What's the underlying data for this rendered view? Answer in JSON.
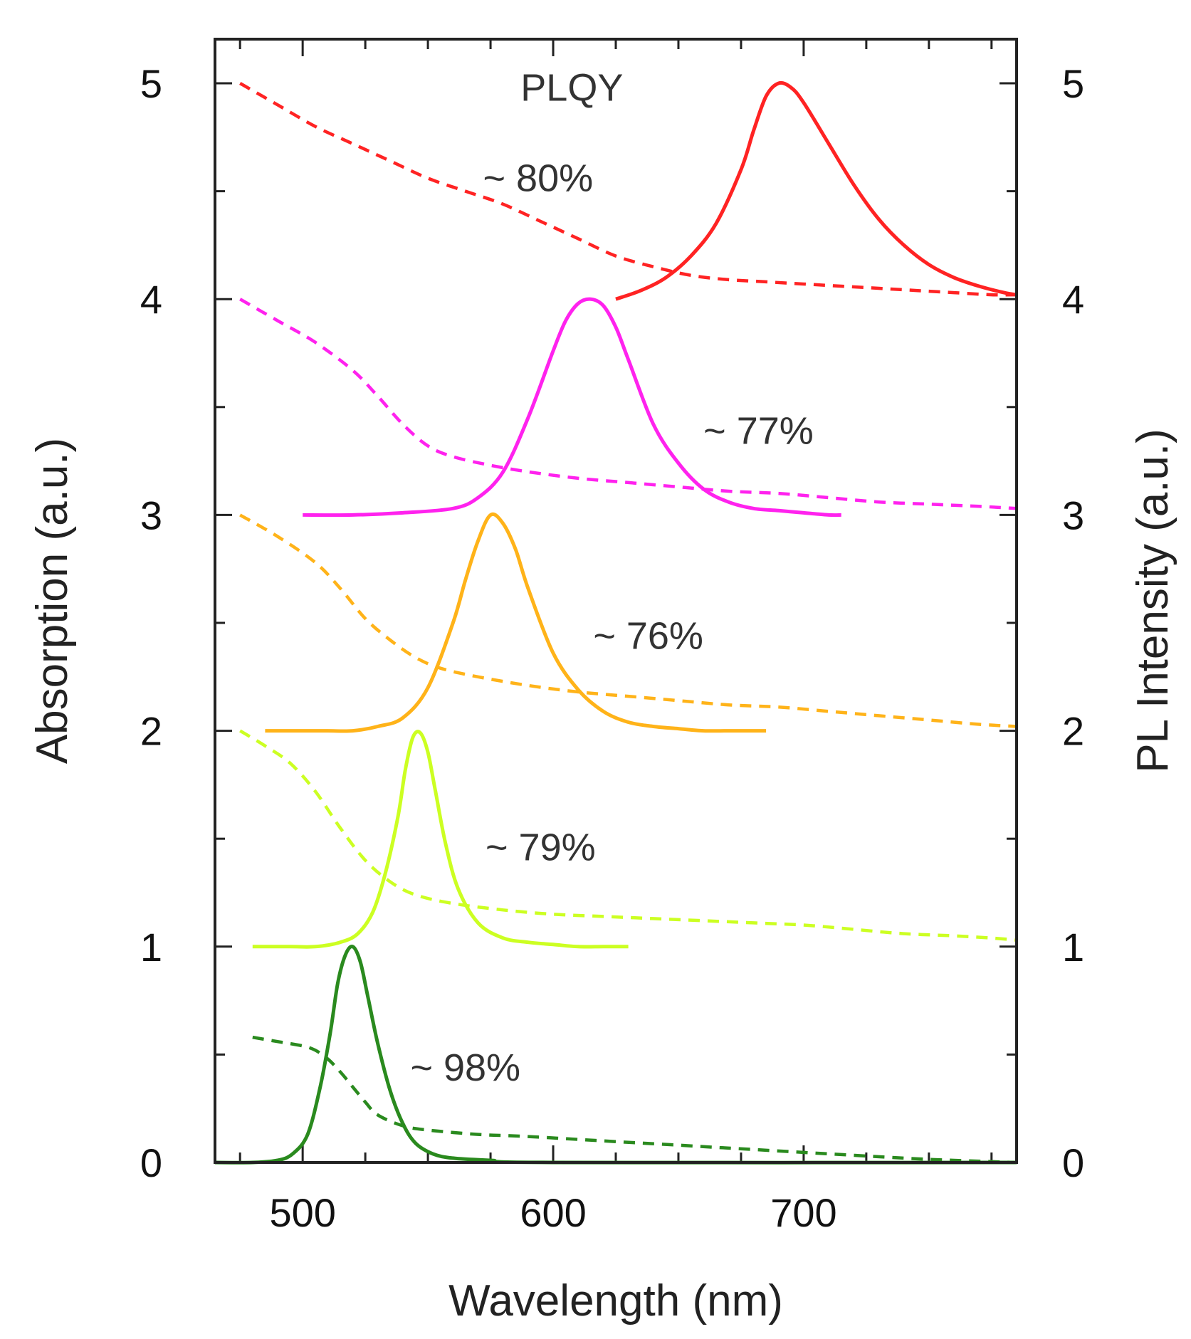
{
  "chart_data": {
    "type": "line",
    "xlabel": "Wavelength (nm)",
    "ylabel_left": "Absorption (a.u.)",
    "ylabel_right": "PL Intensity (a.u.)",
    "xlim": [
      465,
      785
    ],
    "ylim": [
      0,
      5
    ],
    "x_ticks": [
      500,
      600,
      700
    ],
    "x_minor_ticks": [
      475,
      525,
      550,
      575,
      625,
      650,
      675,
      725,
      750,
      775
    ],
    "y_ticks": [
      0,
      1,
      2,
      3,
      4,
      5
    ],
    "y_minor_ticks": [
      0.5,
      1.5,
      2.5,
      3.5,
      4.5
    ],
    "annotations": [
      {
        "text": "PLQY",
        "x": 587,
        "y": 4.92
      },
      {
        "text": "~ 80%",
        "x": 572,
        "y": 4.5
      },
      {
        "text": "~ 77%",
        "x": 660,
        "y": 3.33
      },
      {
        "text": "~ 76%",
        "x": 616,
        "y": 2.38
      },
      {
        "text": "~ 79%",
        "x": 573,
        "y": 1.4
      },
      {
        "text": "~ 98%",
        "x": 543,
        "y": 0.38
      }
    ],
    "series": [
      {
        "name": "Red PL",
        "kind": "pl",
        "color": "#ff2323",
        "x": [
          625,
          635,
          645,
          655,
          665,
          675,
          680,
          685,
          690,
          695,
          700,
          710,
          720,
          730,
          740,
          750,
          760,
          770,
          780,
          785
        ],
        "y": [
          4.0,
          4.04,
          4.1,
          4.2,
          4.35,
          4.6,
          4.78,
          4.94,
          5.0,
          4.98,
          4.91,
          4.72,
          4.53,
          4.37,
          4.25,
          4.16,
          4.1,
          4.06,
          4.03,
          4.02
        ]
      },
      {
        "name": "Red absorption",
        "kind": "absorption",
        "color": "#ff2323",
        "x": [
          475,
          490,
          505,
          520,
          535,
          550,
          565,
          580,
          595,
          610,
          625,
          640,
          655,
          670,
          685,
          700,
          715,
          730,
          745,
          760,
          775,
          785
        ],
        "y": [
          5.0,
          4.9,
          4.8,
          4.72,
          4.64,
          4.56,
          4.5,
          4.44,
          4.36,
          4.28,
          4.2,
          4.15,
          4.11,
          4.09,
          4.08,
          4.07,
          4.06,
          4.05,
          4.04,
          4.03,
          4.02,
          4.02
        ]
      },
      {
        "name": "Magenta PL",
        "kind": "pl",
        "color": "#ff22ee",
        "x": [
          500,
          520,
          540,
          560,
          570,
          580,
          590,
          600,
          605,
          610,
          615,
          620,
          625,
          630,
          640,
          650,
          660,
          670,
          680,
          690,
          700,
          710,
          715
        ],
        "y": [
          3.0,
          3.0,
          3.01,
          3.03,
          3.08,
          3.2,
          3.45,
          3.76,
          3.9,
          3.98,
          4.0,
          3.97,
          3.87,
          3.72,
          3.42,
          3.24,
          3.12,
          3.06,
          3.03,
          3.02,
          3.01,
          3.0,
          3.0
        ]
      },
      {
        "name": "Magenta absorption",
        "kind": "absorption",
        "color": "#ff22ee",
        "x": [
          475,
          490,
          505,
          520,
          530,
          540,
          550,
          560,
          575,
          590,
          610,
          630,
          650,
          670,
          690,
          710,
          730,
          750,
          770,
          785
        ],
        "y": [
          4.0,
          3.9,
          3.8,
          3.67,
          3.55,
          3.42,
          3.32,
          3.27,
          3.23,
          3.2,
          3.17,
          3.15,
          3.13,
          3.11,
          3.1,
          3.08,
          3.06,
          3.05,
          3.04,
          3.03
        ]
      },
      {
        "name": "Orange PL",
        "kind": "pl",
        "color": "#ffb319",
        "x": [
          485,
          500,
          510,
          520,
          530,
          540,
          550,
          560,
          565,
          570,
          575,
          580,
          585,
          590,
          600,
          610,
          620,
          630,
          640,
          650,
          660,
          670,
          680,
          685
        ],
        "y": [
          2.0,
          2.0,
          2.0,
          2.0,
          2.02,
          2.06,
          2.2,
          2.5,
          2.7,
          2.88,
          3.0,
          2.96,
          2.84,
          2.66,
          2.36,
          2.19,
          2.09,
          2.04,
          2.02,
          2.01,
          2.0,
          2.0,
          2.0,
          2.0
        ]
      },
      {
        "name": "Orange absorption",
        "kind": "absorption",
        "color": "#ffb319",
        "x": [
          475,
          490,
          505,
          515,
          525,
          535,
          545,
          555,
          570,
          590,
          610,
          630,
          650,
          670,
          690,
          710,
          730,
          750,
          770,
          785
        ],
        "y": [
          3.0,
          2.9,
          2.78,
          2.66,
          2.52,
          2.42,
          2.34,
          2.29,
          2.25,
          2.21,
          2.18,
          2.16,
          2.14,
          2.12,
          2.11,
          2.09,
          2.07,
          2.05,
          2.03,
          2.02
        ]
      },
      {
        "name": "Yellow-green PL",
        "kind": "pl",
        "color": "#ccff22",
        "x": [
          480,
          495,
          505,
          515,
          522,
          528,
          533,
          538,
          541,
          544,
          547,
          550,
          553,
          557,
          562,
          570,
          580,
          590,
          600,
          610,
          620,
          630
        ],
        "y": [
          1.0,
          1.0,
          1.0,
          1.02,
          1.06,
          1.16,
          1.34,
          1.6,
          1.82,
          1.97,
          1.99,
          1.9,
          1.72,
          1.48,
          1.27,
          1.11,
          1.04,
          1.02,
          1.01,
          1.0,
          1.0,
          1.0
        ]
      },
      {
        "name": "Yellow-green absorption",
        "kind": "absorption",
        "color": "#ccff22",
        "x": [
          475,
          485,
          495,
          505,
          515,
          525,
          535,
          545,
          560,
          580,
          600,
          620,
          640,
          660,
          680,
          700,
          720,
          740,
          760,
          775,
          785
        ],
        "y": [
          2.0,
          1.93,
          1.85,
          1.72,
          1.55,
          1.4,
          1.3,
          1.24,
          1.2,
          1.17,
          1.15,
          1.14,
          1.13,
          1.12,
          1.11,
          1.1,
          1.08,
          1.06,
          1.05,
          1.04,
          1.03
        ]
      },
      {
        "name": "Green PL",
        "kind": "pl",
        "color": "#2a8a1e",
        "x": [
          465,
          480,
          490,
          496,
          502,
          507,
          511,
          514,
          517,
          520,
          523,
          526,
          530,
          535,
          540,
          545,
          552,
          560,
          575,
          600,
          785
        ],
        "y": [
          0.0,
          0.0,
          0.01,
          0.04,
          0.13,
          0.35,
          0.6,
          0.83,
          0.96,
          1.0,
          0.93,
          0.77,
          0.55,
          0.33,
          0.18,
          0.09,
          0.04,
          0.02,
          0.01,
          0.0,
          0.0
        ]
      },
      {
        "name": "Green absorption",
        "kind": "absorption",
        "color": "#2a8a1e",
        "x": [
          480,
          490,
          500,
          505,
          510,
          515,
          520,
          525,
          530,
          540,
          550,
          570,
          590,
          620,
          650,
          680,
          710,
          740,
          760,
          785
        ],
        "y": [
          0.58,
          0.56,
          0.54,
          0.52,
          0.48,
          0.42,
          0.35,
          0.28,
          0.22,
          0.17,
          0.15,
          0.13,
          0.12,
          0.1,
          0.08,
          0.06,
          0.04,
          0.02,
          0.01,
          0.0
        ]
      }
    ]
  }
}
